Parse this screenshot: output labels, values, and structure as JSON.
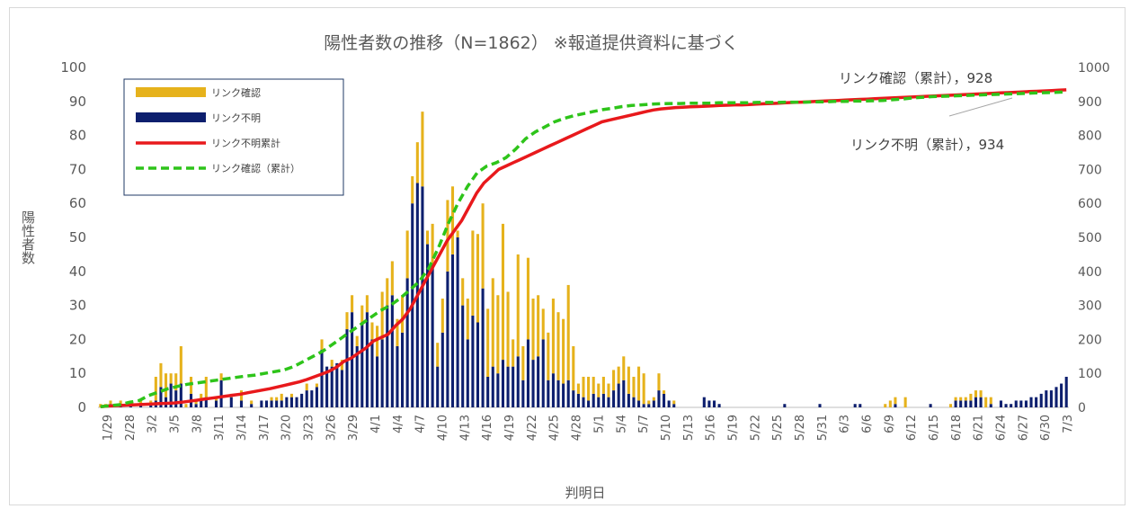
{
  "chart_data": {
    "type": "bar",
    "title": "陽性者数の推移（N=1862） ※報道提供資料に基づく",
    "xlabel": "判明日",
    "ylabel": "陽性者数",
    "ylim": [
      0,
      100
    ],
    "y2lim": [
      0,
      1000
    ],
    "y_ticks": [
      "0",
      "10",
      "20",
      "30",
      "40",
      "50",
      "60",
      "70",
      "80",
      "90",
      "100"
    ],
    "y2_ticks": [
      "0",
      "100",
      "200",
      "300",
      "400",
      "500",
      "600",
      "700",
      "800",
      "900",
      "1000"
    ],
    "x_tick_labels": [
      "1/29",
      "2/28",
      "3/2",
      "3/5",
      "3/8",
      "3/11",
      "3/14",
      "3/17",
      "3/20",
      "3/23",
      "3/26",
      "3/29",
      "4/1",
      "4/4",
      "4/7",
      "4/10",
      "4/13",
      "4/16",
      "4/19",
      "4/22",
      "4/25",
      "4/28",
      "5/1",
      "5/4",
      "5/7",
      "5/10",
      "5/13",
      "5/16",
      "5/19",
      "5/22",
      "5/25",
      "5/28",
      "5/31",
      "6/3",
      "6/6",
      "6/9",
      "6/12",
      "6/15",
      "6/18",
      "6/21",
      "6/24",
      "6/27",
      "6/30",
      "7/3"
    ],
    "legend": {
      "position": "top-left",
      "entries": [
        {
          "label": "リンク確認",
          "color": "#e6b21c",
          "kind": "bar"
        },
        {
          "label": "リンク不明",
          "color": "#0d1f6e",
          "kind": "bar"
        },
        {
          "label": "リンク不明累計",
          "color": "#e8191c",
          "kind": "line"
        },
        {
          "label": "リンク確認（累計）",
          "color": "#2ec41a",
          "kind": "dash"
        }
      ]
    },
    "annotations": [
      {
        "text": "リンク確認（累計），928"
      },
      {
        "text": "リンク不明（累計），934"
      }
    ],
    "series": [
      {
        "name": "リンク確認",
        "axis": "left",
        "color": "#e6b21c",
        "values": [
          1,
          1,
          1,
          0,
          1,
          0,
          1,
          0,
          1,
          0,
          1,
          7,
          7,
          7,
          3,
          5,
          11,
          1,
          5,
          1,
          2,
          6,
          0,
          1,
          2,
          0,
          1,
          0,
          3,
          0,
          1,
          0,
          0,
          0,
          1,
          1,
          2,
          0,
          1,
          0,
          0,
          2,
          0,
          1,
          3,
          0,
          2,
          0,
          3,
          5,
          5,
          3,
          5,
          5,
          5,
          9,
          14,
          8,
          10,
          8,
          11,
          14,
          8,
          12,
          22,
          4,
          12,
          7,
          10,
          21,
          20,
          2,
          8,
          12,
          25,
          26,
          25,
          20,
          26,
          23,
          40,
          22,
          8,
          30,
          10,
          24,
          18,
          18,
          9,
          14,
          22,
          20,
          19,
          28,
          13,
          3,
          6,
          7,
          5,
          4,
          5,
          4,
          6,
          5,
          7,
          8,
          6,
          10,
          9,
          1,
          1,
          5,
          1,
          0,
          1,
          0,
          0,
          0,
          0,
          0,
          0,
          0,
          0,
          0,
          0,
          0,
          0,
          0,
          0,
          0,
          0,
          0,
          0,
          0,
          0,
          0,
          0,
          0,
          0,
          0,
          0,
          0,
          0,
          0,
          0,
          0,
          0,
          0,
          0,
          0,
          0,
          0,
          0,
          0,
          0,
          0,
          1,
          2,
          2,
          0,
          3,
          0,
          0,
          0,
          0,
          0,
          0,
          0,
          0,
          1,
          1,
          1,
          1,
          2,
          2,
          2,
          3,
          2
        ]
      },
      {
        "name": "リンク不明",
        "axis": "left",
        "color": "#0d1f6e",
        "values": [
          0,
          0,
          1,
          0,
          1,
          0,
          1,
          0,
          1,
          0,
          1,
          2,
          6,
          3,
          7,
          5,
          7,
          0,
          4,
          1,
          2,
          3,
          0,
          2,
          8,
          0,
          3,
          0,
          2,
          0,
          1,
          0,
          2,
          2,
          2,
          2,
          2,
          3,
          3,
          3,
          4,
          5,
          5,
          6,
          17,
          12,
          12,
          13,
          11,
          23,
          28,
          18,
          25,
          28,
          20,
          15,
          20,
          30,
          33,
          18,
          22,
          38,
          60,
          66,
          65,
          48,
          42,
          12,
          22,
          40,
          45,
          50,
          30,
          20,
          27,
          25,
          35,
          9,
          12,
          10,
          14,
          12,
          12,
          15,
          8,
          20,
          14,
          15,
          20,
          8,
          10,
          8,
          7,
          8,
          5,
          4,
          3,
          2,
          4,
          3,
          4,
          3,
          5,
          7,
          8,
          4,
          3,
          2,
          1,
          1,
          2,
          5,
          4,
          2,
          1,
          0,
          0,
          0,
          0,
          0,
          3,
          2,
          2,
          1,
          0,
          0,
          0,
          0,
          0,
          0,
          0,
          0,
          0,
          0,
          0,
          0,
          1,
          0,
          0,
          0,
          0,
          0,
          0,
          1,
          0,
          0,
          0,
          0,
          0,
          0,
          1,
          1,
          0,
          0,
          0,
          0,
          0,
          0,
          1,
          0,
          0,
          0,
          0,
          0,
          0,
          1,
          0,
          0,
          0,
          0,
          2,
          2,
          2,
          2,
          3,
          3,
          0,
          1,
          0,
          2,
          1,
          1,
          2,
          2,
          2,
          3,
          3,
          4,
          5,
          5,
          6,
          7,
          9
        ]
      },
      {
        "name": "リンク不明累計",
        "axis": "right",
        "color": "#e8191c",
        "values": [
          2,
          4,
          5,
          6,
          7,
          8,
          9,
          10,
          11,
          12,
          13,
          15,
          18,
          21,
          24,
          27,
          30,
          33,
          36,
          39,
          43,
          47,
          51,
          55,
          60,
          65,
          70,
          75,
          82,
          90,
          98,
          106,
          118,
          135,
          145,
          160,
          175,
          195,
          205,
          215,
          240,
          260,
          290,
          330,
          370,
          410,
          450,
          490,
          520,
          550,
          590,
          630,
          660,
          680,
          700,
          710,
          720,
          730,
          740,
          750,
          760,
          770,
          780,
          790,
          800,
          810,
          820,
          830,
          840,
          845,
          850,
          855,
          860,
          865,
          870,
          875,
          878,
          880,
          882,
          883,
          884,
          885,
          886,
          887,
          888,
          889,
          890,
          890,
          891,
          892,
          893,
          894,
          895,
          896,
          897,
          898,
          899,
          900,
          901,
          902,
          903,
          904,
          905,
          906,
          907,
          908,
          909,
          910,
          911,
          912,
          913,
          914,
          915,
          916,
          917,
          918,
          919,
          920,
          921,
          922,
          923,
          924,
          925,
          926,
          927,
          928,
          929,
          930,
          931,
          932,
          933,
          934
        ]
      },
      {
        "name": "リンク確認（累計）",
        "axis": "right",
        "color": "#2ec41a",
        "values": [
          2,
          5,
          8,
          15,
          20,
          35,
          45,
          55,
          62,
          68,
          72,
          76,
          80,
          84,
          88,
          92,
          95,
          100,
          105,
          110,
          120,
          135,
          150,
          165,
          185,
          205,
          225,
          245,
          265,
          285,
          300,
          320,
          345,
          370,
          410,
          470,
          540,
          600,
          650,
          690,
          710,
          720,
          735,
          760,
          790,
          810,
          825,
          840,
          850,
          858,
          864,
          870,
          876,
          880,
          885,
          888,
          890,
          892,
          893,
          894,
          894,
          895,
          895,
          895,
          896,
          896,
          896,
          896,
          897,
          897,
          897,
          898,
          898,
          898,
          899,
          899,
          900,
          900,
          901,
          901,
          902,
          903,
          905,
          907,
          910,
          912,
          914,
          915,
          916,
          917,
          918,
          919,
          920,
          921,
          922,
          923,
          924,
          925,
          926,
          927,
          928
        ]
      }
    ]
  }
}
